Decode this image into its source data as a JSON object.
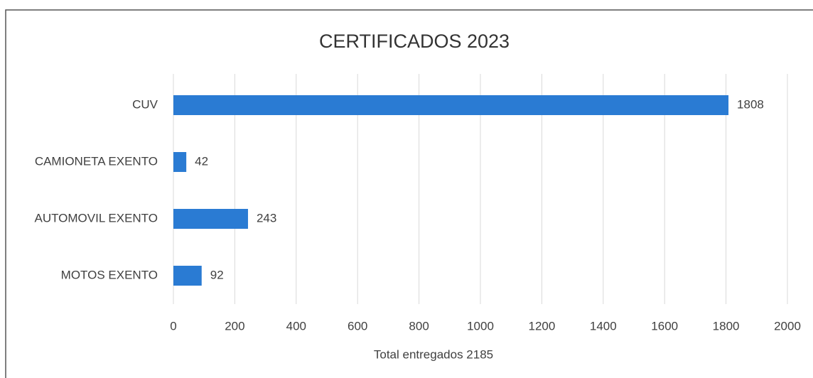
{
  "chart_data": {
    "type": "bar",
    "orientation": "horizontal",
    "title": "CERTIFICADOS 2023",
    "categories": [
      "CUV",
      "CAMIONETA EXENTO",
      "AUTOMOVIL EXENTO",
      "MOTOS EXENTO"
    ],
    "values": [
      1808,
      42,
      243,
      92
    ],
    "color": "#2a7bd3",
    "xlabel": "Total entregados 2185",
    "xlim": [
      0,
      2000
    ],
    "xticks": [
      0,
      200,
      400,
      600,
      800,
      1000,
      1200,
      1400,
      1600,
      1800,
      2000
    ],
    "grid": true
  }
}
